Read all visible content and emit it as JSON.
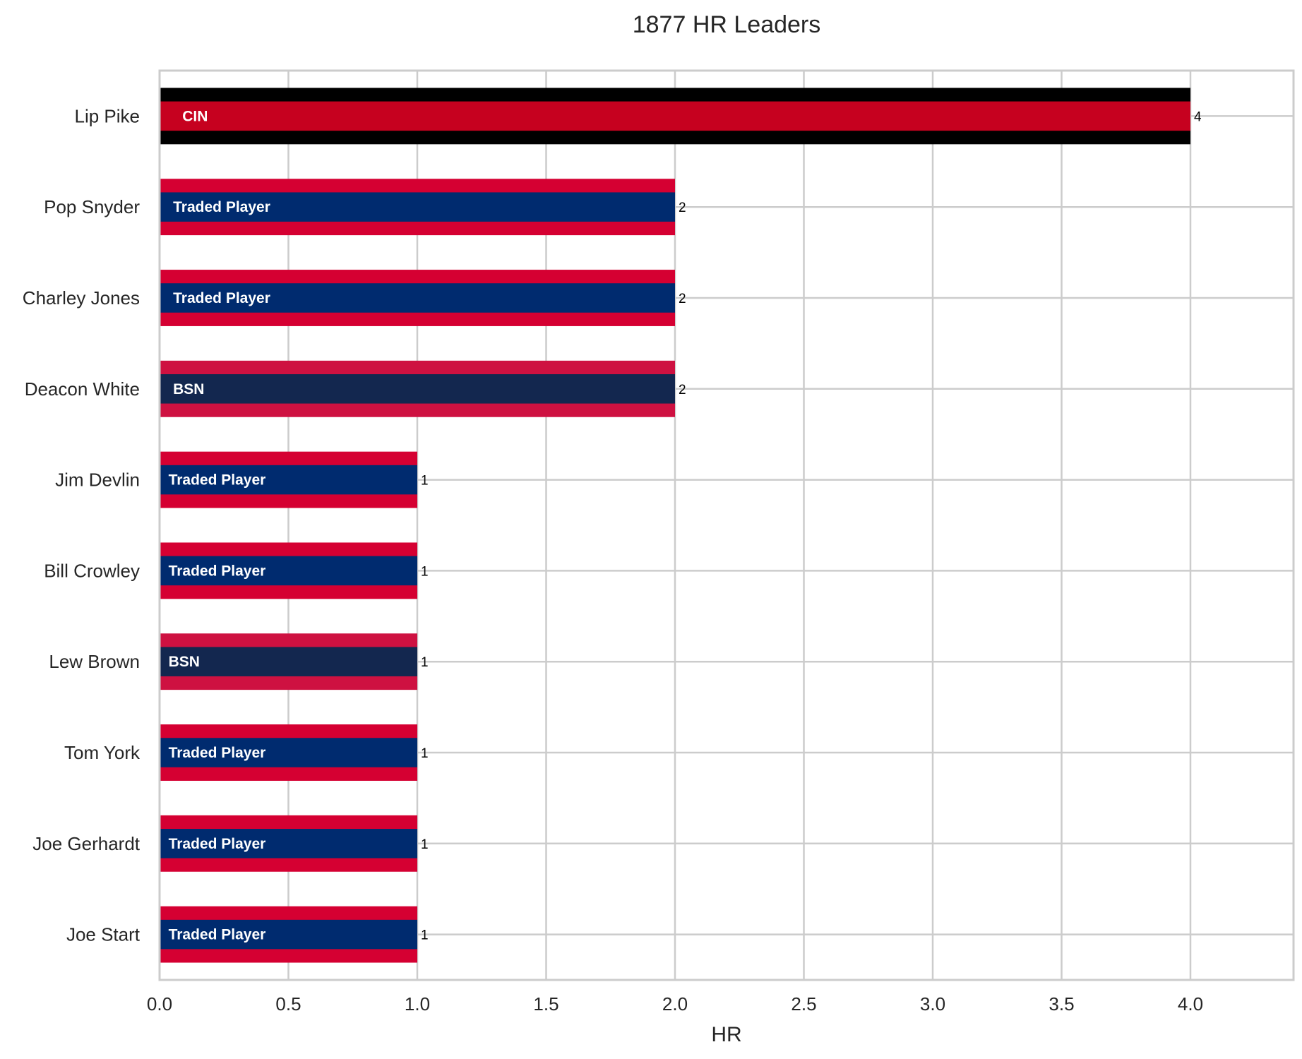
{
  "chart_data": {
    "type": "bar",
    "orientation": "horizontal",
    "title": "1877 HR Leaders",
    "xlabel": "HR",
    "ylabel": "",
    "xlim": [
      0,
      4.4
    ],
    "xticks": [
      "0.0",
      "0.5",
      "1.0",
      "1.5",
      "2.0",
      "2.5",
      "3.0",
      "3.5",
      "4.0"
    ],
    "grid": true,
    "categories": [
      "Lip Pike",
      "Pop Snyder",
      "Charley Jones",
      "Deacon White",
      "Jim Devlin",
      "Bill Crowley",
      "Lew Brown",
      "Tom York",
      "Joe Gerhardt",
      "Joe Start"
    ],
    "values": [
      4,
      2,
      2,
      2,
      1,
      1,
      1,
      1,
      1,
      1
    ],
    "value_labels": [
      "4",
      "2",
      "2",
      "2",
      "1",
      "1",
      "1",
      "1",
      "1",
      "1"
    ],
    "bar_labels": [
      "CIN",
      "Traded Player",
      "Traded Player",
      "BSN",
      "Traded Player",
      "Traded Player",
      "BSN",
      "Traded Player",
      "Traded Player",
      "Traded Player"
    ],
    "bar_colors": [
      {
        "outer": "#000000",
        "inner": "#C6011F"
      },
      {
        "outer": "#D50032",
        "inner": "#002B6F"
      },
      {
        "outer": "#D50032",
        "inner": "#002B6F"
      },
      {
        "outer": "#CE1141",
        "inner": "#13274F"
      },
      {
        "outer": "#D50032",
        "inner": "#002B6F"
      },
      {
        "outer": "#D50032",
        "inner": "#002B6F"
      },
      {
        "outer": "#CE1141",
        "inner": "#13274F"
      },
      {
        "outer": "#D50032",
        "inner": "#002B6F"
      },
      {
        "outer": "#D50032",
        "inner": "#002B6F"
      },
      {
        "outer": "#D50032",
        "inner": "#002B6F"
      }
    ],
    "colors": {
      "grid": "#cccccc",
      "frame": "#cccccc",
      "text": "#262626"
    }
  }
}
